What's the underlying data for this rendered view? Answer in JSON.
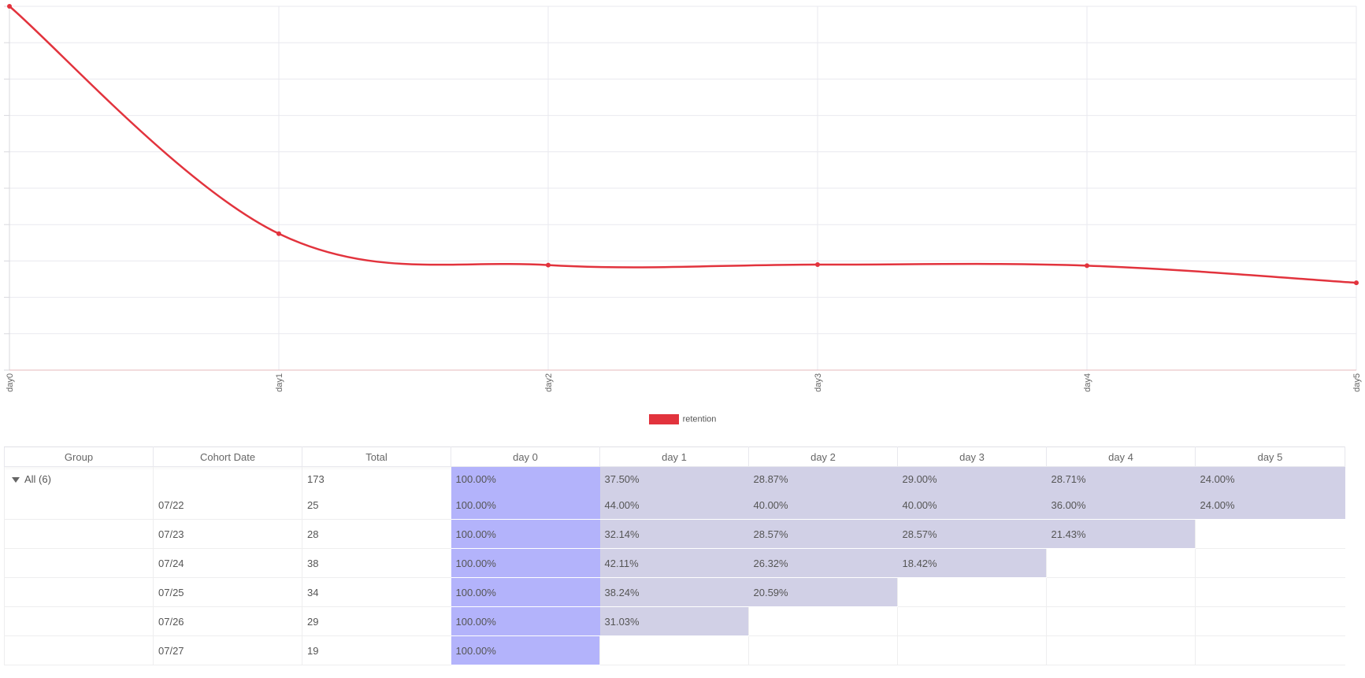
{
  "colors": {
    "line": "#e2333d",
    "day0_cell": "#b3b3fb",
    "other_cell": "#d1d0e6",
    "grid": "#e9e9ef"
  },
  "chart_data": {
    "type": "line",
    "categories": [
      "day0",
      "day1",
      "day2",
      "day3",
      "day4",
      "day5"
    ],
    "series": [
      {
        "name": "retention",
        "values": [
          100.0,
          37.5,
          28.87,
          29.0,
          28.71,
          24.0
        ]
      }
    ],
    "ylim": [
      0,
      100
    ],
    "grid": true,
    "smooth": true,
    "legend_position": "bottom"
  },
  "legend": {
    "label": "retention"
  },
  "table": {
    "headers": [
      "Group",
      "Cohort Date",
      "Total",
      "day 0",
      "day 1",
      "day 2",
      "day 3",
      "day 4",
      "day 5"
    ],
    "rows": [
      {
        "group": "All (6)",
        "date": "",
        "total": "173",
        "pct": [
          "100.00%",
          "37.50%",
          "28.87%",
          "29.00%",
          "28.71%",
          "24.00%"
        ]
      },
      {
        "group": "",
        "date": "07/22",
        "total": "25",
        "pct": [
          "100.00%",
          "44.00%",
          "40.00%",
          "40.00%",
          "36.00%",
          "24.00%"
        ]
      },
      {
        "group": "",
        "date": "07/23",
        "total": "28",
        "pct": [
          "100.00%",
          "32.14%",
          "28.57%",
          "28.57%",
          "21.43%"
        ]
      },
      {
        "group": "",
        "date": "07/24",
        "total": "38",
        "pct": [
          "100.00%",
          "42.11%",
          "26.32%",
          "18.42%"
        ]
      },
      {
        "group": "",
        "date": "07/25",
        "total": "34",
        "pct": [
          "100.00%",
          "38.24%",
          "20.59%"
        ]
      },
      {
        "group": "",
        "date": "07/26",
        "total": "29",
        "pct": [
          "100.00%",
          "31.03%"
        ]
      },
      {
        "group": "",
        "date": "07/27",
        "total": "19",
        "pct": [
          "100.00%"
        ]
      }
    ]
  }
}
